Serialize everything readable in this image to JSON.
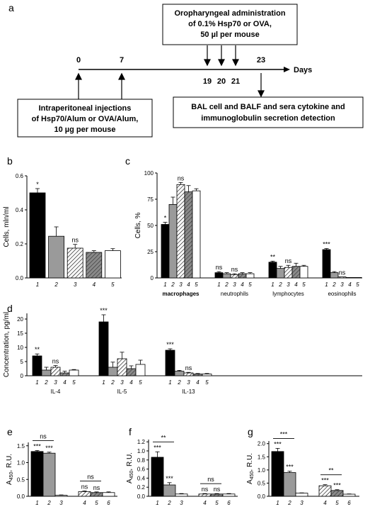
{
  "panel_labels": [
    "a",
    "b",
    "c",
    "d",
    "e",
    "f",
    "g"
  ],
  "timeline": {
    "top_box": [
      "Oropharyngeal administration",
      "of 0.1% Hsp70 or OVA,",
      "50 µl per mouse"
    ],
    "bottom_left_box": [
      "Intraperitoneal injections",
      "of Hsp70/Alum or OVA/Alum,",
      "10 µg per mouse"
    ],
    "bottom_right_box": [
      "BAL cell and BALF and sera cytokine and",
      "immunoglobulin secretion detection"
    ],
    "days_above": [
      "0",
      "7",
      "23"
    ],
    "days_below": [
      "19",
      "20",
      "21"
    ],
    "axis_label": "Days"
  },
  "chart_data": [
    {
      "panel": "b",
      "type": "bar",
      "ylabel": "Cells, mln/ml",
      "yticks": [
        "0.0",
        "0.2",
        "0.4",
        "0.6"
      ],
      "ylim": [
        0,
        0.6
      ],
      "categories": [
        "1",
        "2",
        "3",
        "4",
        "5"
      ],
      "values": [
        0.5,
        0.245,
        0.175,
        0.15,
        0.16
      ],
      "errors": [
        0.025,
        0.055,
        0.022,
        0.01,
        0.012
      ],
      "annotations": [
        "*",
        "",
        "ns",
        "",
        ""
      ],
      "fills": [
        "black",
        "gray",
        "hatch",
        "darkhatch",
        "white"
      ]
    },
    {
      "panel": "c",
      "type": "bar",
      "ylabel": "Cells, %",
      "yticks": [
        "0",
        "25",
        "50",
        "75",
        "100"
      ],
      "ylim": [
        0,
        100
      ],
      "groups": [
        "macrophages",
        "neutrophils",
        "lymphocytes",
        "eosinophils"
      ],
      "categories": [
        "1",
        "2",
        "3",
        "4",
        "5"
      ],
      "values": [
        [
          51,
          70,
          89,
          82,
          83
        ],
        [
          5,
          4,
          3,
          4,
          4
        ],
        [
          15,
          9,
          10,
          11,
          11
        ],
        [
          27,
          5,
          1,
          0,
          0
        ]
      ],
      "errors": [
        [
          2,
          7,
          2,
          6,
          2
        ],
        [
          1,
          1,
          1,
          1,
          1
        ],
        [
          1,
          2,
          2,
          3,
          1
        ],
        [
          1,
          1,
          0,
          0,
          0
        ]
      ],
      "annotations": [
        [
          "*",
          "",
          "ns",
          "",
          ""
        ],
        [
          "ns",
          "",
          "ns",
          "",
          ""
        ],
        [
          "**",
          "",
          "ns",
          "",
          ""
        ],
        [
          "***",
          "",
          "ns",
          "",
          ""
        ]
      ],
      "fills": [
        "black",
        "gray",
        "hatch",
        "darkhatch",
        "white"
      ]
    },
    {
      "panel": "d",
      "type": "bar",
      "ylabel": "Concentration, pg/ml",
      "yticks": [
        "0",
        "5",
        "10",
        "15",
        "20"
      ],
      "ylim": [
        0,
        22
      ],
      "groups": [
        "IL-4",
        "IL-5",
        "IL-13"
      ],
      "categories": [
        "1",
        "2",
        "3",
        "4",
        "5"
      ],
      "values": [
        [
          7,
          2,
          3,
          1,
          2
        ],
        [
          19,
          3,
          6,
          2.5,
          4
        ],
        [
          9,
          1.6,
          1,
          0.6,
          0.6
        ]
      ],
      "errors": [
        [
          0.7,
          1,
          0.6,
          0.6,
          0.2
        ],
        [
          2.5,
          1.8,
          2.3,
          1,
          1.5
        ],
        [
          0.5,
          0.3,
          0.2,
          0.2,
          0.2
        ]
      ],
      "annotations": [
        [
          "**",
          "",
          "ns",
          "",
          ""
        ],
        [
          "***",
          "",
          "",
          "",
          ""
        ],
        [
          "***",
          "",
          "ns",
          "",
          ""
        ]
      ],
      "fills": [
        "black",
        "gray",
        "hatch",
        "darkhatch",
        "white"
      ]
    },
    {
      "panel": "e",
      "type": "bar",
      "ylabel": "A450, R.U.",
      "yticks": [
        "0.0",
        "0.5",
        "1.0",
        "1.5"
      ],
      "ylim": [
        0,
        1.6
      ],
      "categories": [
        "1",
        "2",
        "3",
        "4",
        "5",
        "6"
      ],
      "values": [
        1.33,
        1.28,
        0.03,
        0.14,
        0.11,
        0.11
      ],
      "errors": [
        0.03,
        0.03,
        0.01,
        0.02,
        0.02,
        0.02
      ],
      "annotations": [
        "***",
        "***",
        "",
        "ns",
        "ns",
        ""
      ],
      "brackets": [
        {
          "from": 0,
          "to": 1,
          "label": "ns"
        },
        {
          "from": 3,
          "to": 4,
          "label": "ns"
        }
      ],
      "fills": [
        "black",
        "gray",
        "white",
        "hatch",
        "darkhatch",
        "white"
      ]
    },
    {
      "panel": "f",
      "type": "bar",
      "ylabel": "A450, R.U.",
      "yticks": [
        "0.0",
        "0.2",
        "0.4",
        "0.6",
        "0.8",
        "1.0",
        "1.2"
      ],
      "ylim": [
        0,
        1.25
      ],
      "categories": [
        "1",
        "2",
        "3",
        "4",
        "5",
        "6"
      ],
      "values": [
        0.86,
        0.25,
        0.05,
        0.05,
        0.05,
        0.05
      ],
      "errors": [
        0.12,
        0.05,
        0.01,
        0.01,
        0.01,
        0.01
      ],
      "annotations": [
        "***",
        "***",
        "",
        "ns",
        "ns",
        ""
      ],
      "brackets": [
        {
          "from": 0,
          "to": 1,
          "label": "**"
        },
        {
          "from": 3,
          "to": 4,
          "label": "ns"
        }
      ],
      "fills": [
        "black",
        "gray",
        "white",
        "hatch",
        "darkhatch",
        "white"
      ]
    },
    {
      "panel": "g",
      "type": "bar",
      "ylabel": "A450, R.U.",
      "yticks": [
        "0.0",
        "0.5",
        "1.0",
        "1.5",
        "2.0"
      ],
      "ylim": [
        0,
        2.1
      ],
      "categories": [
        "1",
        "2",
        "3",
        "4",
        "5",
        "6"
      ],
      "values": [
        1.7,
        0.9,
        0.12,
        0.4,
        0.22,
        0.08
      ],
      "errors": [
        0.12,
        0.05,
        0.01,
        0.04,
        0.03,
        0.01
      ],
      "annotations": [
        "***",
        "***",
        "",
        "***",
        "***",
        ""
      ],
      "brackets": [
        {
          "from": 0,
          "to": 1,
          "label": "***"
        },
        {
          "from": 3,
          "to": 4,
          "label": "**"
        }
      ],
      "fills": [
        "black",
        "gray",
        "white",
        "hatch",
        "darkhatch",
        "white"
      ]
    }
  ]
}
